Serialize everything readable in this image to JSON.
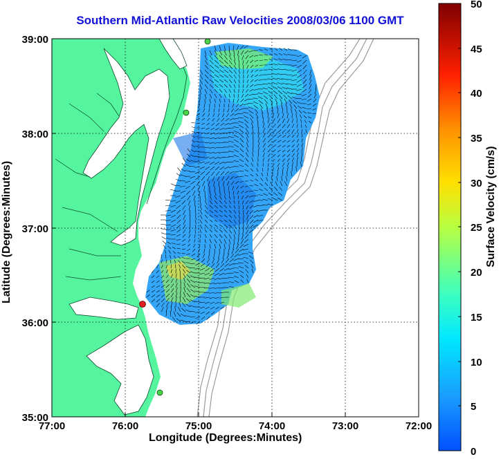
{
  "title": "Southern Mid-Atlantic Raw Velocities 2008/03/06 1100 GMT",
  "xlabel": "Longitude (Degrees:Minutes)",
  "ylabel": "Latitude (Degrees:Minutes)",
  "x_ticks": [
    "77:00",
    "76:00",
    "75:00",
    "74:00",
    "73:00",
    "72:00"
  ],
  "y_ticks": [
    "39:00",
    "38:00",
    "37:00",
    "36:00",
    "35:00"
  ],
  "colorbar": {
    "label": "Surface Velocity (cm/s)",
    "ticks": [
      "50",
      "45",
      "40",
      "35",
      "30",
      "25",
      "20",
      "15",
      "10",
      "5",
      "0"
    ],
    "range": [
      0,
      50
    ],
    "colormap": "jet"
  },
  "colors": {
    "land": "#55f5a0",
    "water": "#ffffff",
    "title": "#1010d8",
    "bathymetry": "#9a9a9a"
  },
  "stations": [
    {
      "name": "station-north",
      "color": "#4ad24a"
    },
    {
      "name": "station-mid",
      "color": "#4ad24a"
    },
    {
      "name": "station-hatteras",
      "color": "#e02020"
    },
    {
      "name": "station-south",
      "color": "#4ad24a"
    }
  ],
  "chart_data": {
    "type": "heatmap",
    "title": "Southern Mid-Atlantic Raw Velocities 2008/03/06 1100 GMT",
    "xlabel": "Longitude (Degrees:Minutes)",
    "ylabel": "Latitude (Degrees:Minutes)",
    "xlim": [
      -77,
      -72
    ],
    "ylim": [
      35,
      39
    ],
    "units": "cm/s",
    "color_range": [
      0,
      50
    ],
    "grid": true,
    "legend": "right colorbar"
  }
}
